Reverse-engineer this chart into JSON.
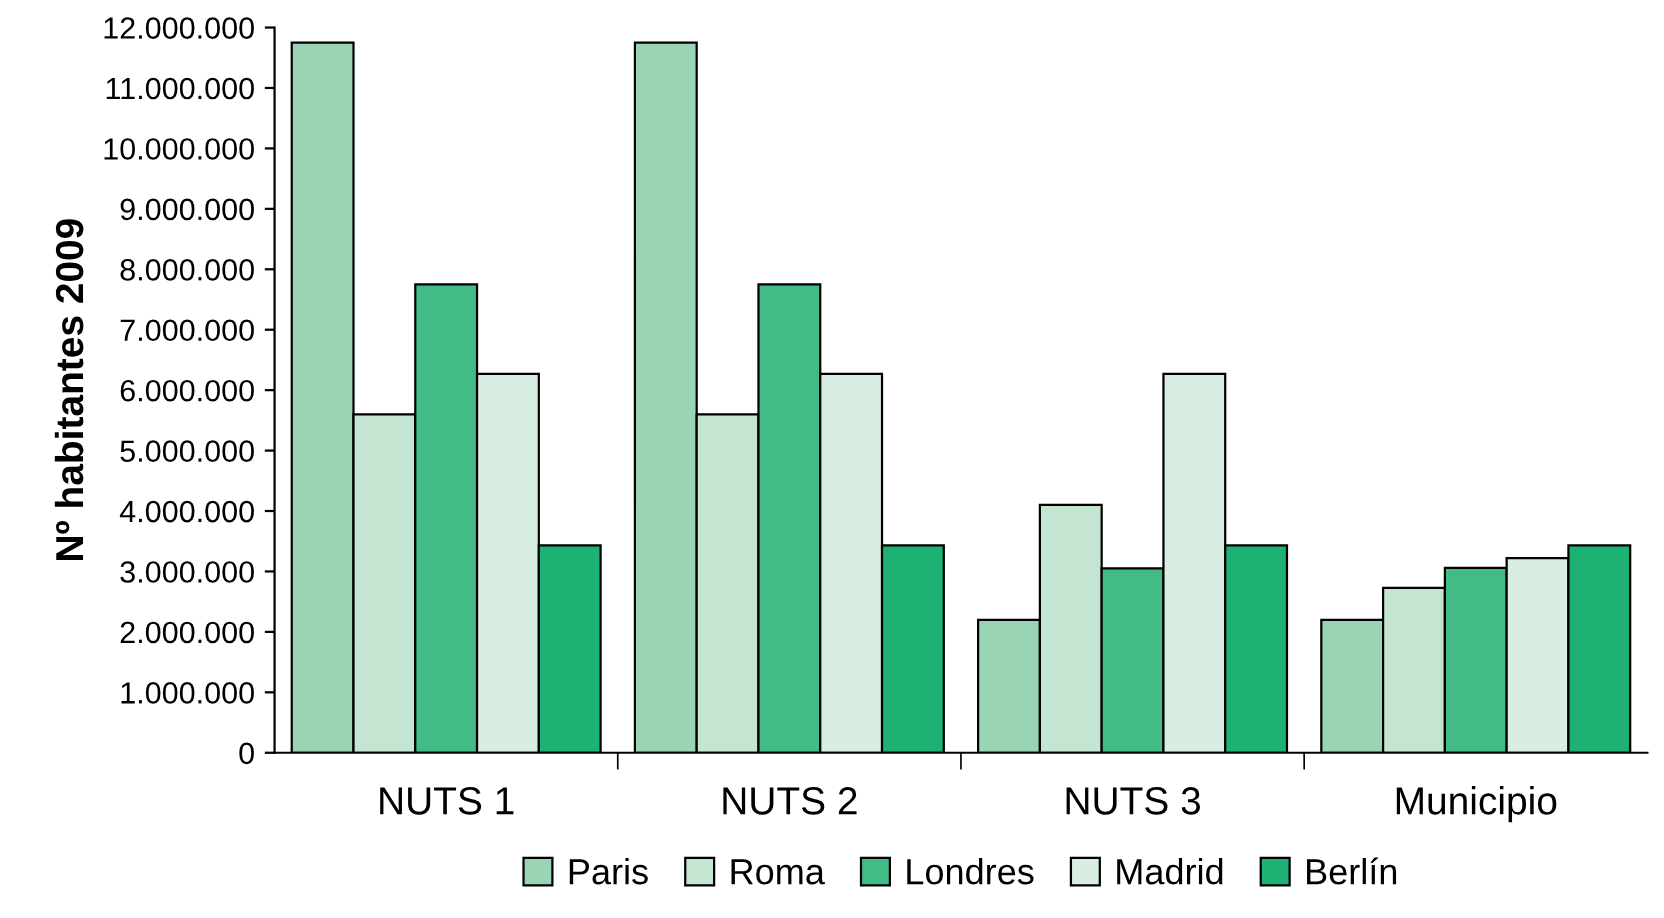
{
  "chart_data": {
    "type": "bar",
    "ylabel": "Nº habitantes 2009",
    "categories": [
      "NUTS 1",
      "NUTS 2",
      "NUTS 3",
      "Municipio"
    ],
    "series": [
      {
        "name": "Paris",
        "color": "#99d5b5",
        "values": [
          11750000,
          11750000,
          2200000,
          2200000
        ]
      },
      {
        "name": "Roma",
        "color": "#c5e5d3",
        "values": [
          5600000,
          5600000,
          4100000,
          2730000
        ]
      },
      {
        "name": "Londres",
        "color": "#42bb86",
        "values": [
          7750000,
          7750000,
          3050000,
          3060000
        ]
      },
      {
        "name": "Madrid",
        "color": "#d8eee2",
        "values": [
          6270000,
          6270000,
          6270000,
          3220000
        ]
      },
      {
        "name": "Berlín",
        "color": "#1db173",
        "values": [
          3430000,
          3430000,
          3430000,
          3430000
        ]
      }
    ],
    "ylim": [
      0,
      12000000
    ],
    "yticks": [
      {
        "value": 0,
        "label": "0"
      },
      {
        "value": 1000000,
        "label": "1.000.000"
      },
      {
        "value": 2000000,
        "label": "2.000.000"
      },
      {
        "value": 3000000,
        "label": "3.000.000"
      },
      {
        "value": 4000000,
        "label": "4.000.000"
      },
      {
        "value": 5000000,
        "label": "5.000.000"
      },
      {
        "value": 6000000,
        "label": "6.000.000"
      },
      {
        "value": 7000000,
        "label": "7.000.000"
      },
      {
        "value": 8000000,
        "label": "8.000.000"
      },
      {
        "value": 9000000,
        "label": "9.000.000"
      },
      {
        "value": 10000000,
        "label": "10.000.000"
      },
      {
        "value": 11000000,
        "label": "11.000.000"
      },
      {
        "value": 12000000,
        "label": "12.000.000"
      }
    ],
    "grid": false,
    "legend": "bottom"
  }
}
